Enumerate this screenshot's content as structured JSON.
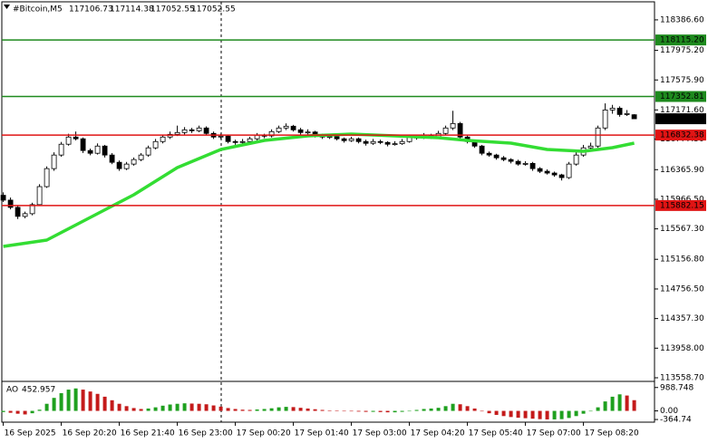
{
  "chart_data": {
    "type": "candlestick",
    "title": "#Bitcoin,M5",
    "candles": [
      [
        116020,
        116060,
        115930,
        115955
      ],
      [
        115955,
        115990,
        115830,
        115857
      ],
      [
        115857,
        115880,
        115700,
        115736
      ],
      [
        115736,
        115800,
        115710,
        115772
      ],
      [
        115772,
        115920,
        115750,
        115894
      ],
      [
        115894,
        116170,
        115880,
        116137
      ],
      [
        116137,
        116410,
        116120,
        116380
      ],
      [
        116380,
        116600,
        116350,
        116563
      ],
      [
        116563,
        116740,
        116540,
        116709
      ],
      [
        116709,
        116850,
        116690,
        116806
      ],
      [
        116806,
        116880,
        116760,
        116782
      ],
      [
        116782,
        116800,
        116590,
        116624
      ],
      [
        116624,
        116650,
        116560,
        116587
      ],
      [
        116587,
        116720,
        116570,
        116684
      ],
      [
        116684,
        116700,
        116530,
        116563
      ],
      [
        116563,
        116590,
        116440,
        116465
      ],
      [
        116465,
        116490,
        116350,
        116380
      ],
      [
        116380,
        116470,
        116360,
        116441
      ],
      [
        116441,
        116530,
        116420,
        116502
      ],
      [
        116502,
        116590,
        116480,
        116563
      ],
      [
        116563,
        116690,
        116540,
        116660
      ],
      [
        116660,
        116780,
        116640,
        116745
      ],
      [
        116745,
        116840,
        116720,
        116806
      ],
      [
        116806,
        116880,
        116780,
        116842
      ],
      [
        116842,
        116960,
        116820,
        116867
      ],
      [
        116867,
        116940,
        116840,
        116903
      ],
      [
        116903,
        116930,
        116860,
        116891
      ],
      [
        116891,
        116960,
        116870,
        116928
      ],
      [
        116928,
        116950,
        116830,
        116855
      ],
      [
        116855,
        116880,
        116780,
        116806
      ],
      [
        116806,
        116850,
        116780,
        116818
      ],
      [
        116818,
        116840,
        116720,
        116745
      ],
      [
        116745,
        116770,
        116700,
        116733
      ],
      [
        116733,
        116780,
        116710,
        116745
      ],
      [
        116745,
        116810,
        116720,
        116782
      ],
      [
        116782,
        116860,
        116760,
        116830
      ],
      [
        116830,
        116850,
        116790,
        116822
      ],
      [
        116822,
        116910,
        116800,
        116879
      ],
      [
        116879,
        116960,
        116860,
        116928
      ],
      [
        116928,
        116990,
        116900,
        116952
      ],
      [
        116952,
        116970,
        116880,
        116903
      ],
      [
        116903,
        116930,
        116840,
        116867
      ],
      [
        116867,
        116910,
        116840,
        116874
      ],
      [
        116874,
        116890,
        116800,
        116830
      ],
      [
        116830,
        116850,
        116780,
        116806
      ],
      [
        116806,
        116840,
        116780,
        116812
      ],
      [
        116812,
        116830,
        116760,
        116782
      ],
      [
        116782,
        116800,
        116730,
        116757
      ],
      [
        116757,
        116810,
        116740,
        116782
      ],
      [
        116782,
        116800,
        116720,
        116745
      ],
      [
        116745,
        116770,
        116690,
        116721
      ],
      [
        116721,
        116780,
        116700,
        116745
      ],
      [
        116745,
        116770,
        116710,
        116733
      ],
      [
        116733,
        116750,
        116680,
        116709
      ],
      [
        116709,
        116750,
        116690,
        116716
      ],
      [
        116716,
        116780,
        116700,
        116745
      ],
      [
        116745,
        116840,
        116730,
        116806
      ],
      [
        116806,
        116830,
        116770,
        116800
      ],
      [
        116800,
        116860,
        116780,
        116830
      ],
      [
        116830,
        116850,
        116780,
        116806
      ],
      [
        116806,
        116890,
        116790,
        116855
      ],
      [
        116855,
        116960,
        116840,
        116928
      ],
      [
        116928,
        117160,
        116900,
        116988
      ],
      [
        116988,
        117010,
        116780,
        116806
      ],
      [
        116806,
        116830,
        116720,
        116745
      ],
      [
        116745,
        116770,
        116660,
        116684
      ],
      [
        116684,
        116700,
        116560,
        116587
      ],
      [
        116587,
        116610,
        116540,
        116563
      ],
      [
        116563,
        116580,
        116500,
        116526
      ],
      [
        116526,
        116550,
        116480,
        116502
      ],
      [
        116502,
        116520,
        116450,
        116478
      ],
      [
        116478,
        116500,
        116420,
        116441
      ],
      [
        116441,
        116480,
        116420,
        116450
      ],
      [
        116450,
        116470,
        116350,
        116380
      ],
      [
        116380,
        116400,
        116320,
        116344
      ],
      [
        116344,
        116370,
        116300,
        116320
      ],
      [
        116320,
        116340,
        116270,
        116295
      ],
      [
        116295,
        116310,
        116220,
        116259
      ],
      [
        116259,
        116470,
        116240,
        116441
      ],
      [
        116441,
        116600,
        116420,
        116563
      ],
      [
        116563,
        116700,
        116540,
        116660
      ],
      [
        116660,
        116730,
        116630,
        116684
      ],
      [
        116684,
        116960,
        116660,
        116928
      ],
      [
        116928,
        117260,
        116900,
        117171
      ],
      [
        117171,
        117240,
        117120,
        117195
      ],
      [
        117195,
        117220,
        117080,
        117110
      ],
      [
        117110,
        117170,
        117090,
        117122
      ],
      [
        117106.73,
        117114.38,
        117052.55,
        117052.55
      ]
    ],
    "candle_up_color": "#ffffff",
    "candle_down_color": "#000000",
    "candle_edge_color": "#000000",
    "ma": {
      "color": "#33dd33",
      "x": [
        0,
        6,
        12,
        18,
        24,
        30,
        36,
        42,
        48,
        54,
        60,
        64,
        70,
        75,
        80,
        84,
        87
      ],
      "values": [
        115331,
        115416,
        115722,
        116027,
        116394,
        116638,
        116760,
        116821,
        116846,
        116821,
        116797,
        116760,
        116724,
        116638,
        116614,
        116663,
        116724
      ]
    },
    "levels": [
      {
        "value": 118115.2,
        "label": "118115.20",
        "color": "#1e8a1e"
      },
      {
        "value": 117352.81,
        "label": "117352.81",
        "color": "#1e8a1e"
      },
      {
        "value": 116832.38,
        "label": "116832.38",
        "color": "#e01414"
      },
      {
        "value": 115882.15,
        "label": "115882.15",
        "color": "#e01414"
      }
    ],
    "xlim": [
      -0.2,
      89.8
    ],
    "ylim": [
      113522,
      118630
    ],
    "xticks": [
      {
        "value": 0,
        "label": "16 Sep 2025"
      },
      {
        "value": 8,
        "label": "16 Sep 20:20"
      },
      {
        "value": 16,
        "label": "16 Sep 21:40"
      },
      {
        "value": 24,
        "label": "16 Sep 23:00"
      },
      {
        "value": 32,
        "label": "17 Sep 00:20"
      },
      {
        "value": 40,
        "label": "17 Sep 01:40"
      },
      {
        "value": 48,
        "label": "17 Sep 03:00"
      },
      {
        "value": 56,
        "label": "17 Sep 04:20"
      },
      {
        "value": 64,
        "label": "17 Sep 05:40"
      },
      {
        "value": 72,
        "label": "17 Sep 07:00"
      },
      {
        "value": 80,
        "label": "17 Sep 08:20"
      }
    ],
    "yticks": [
      {
        "value": 118386.6,
        "label": "118386.60"
      },
      {
        "value": 117975.2,
        "label": "117975.20"
      },
      {
        "value": 117575.9,
        "label": "117575.90"
      },
      {
        "value": 117171.6,
        "label": "117171.60"
      },
      {
        "value": 116777.5,
        "label": "116777.50"
      },
      {
        "value": 116365.9,
        "label": "116365.90"
      },
      {
        "value": 115966.5,
        "label": "115966.50"
      },
      {
        "value": 115567.3,
        "label": "115567.30"
      },
      {
        "value": 115156.8,
        "label": "115156.80"
      },
      {
        "value": 114756.5,
        "label": "114756.50"
      },
      {
        "value": 114357.3,
        "label": "114357.30"
      },
      {
        "value": 113958,
        "label": "113958.00"
      },
      {
        "value": 113558.7,
        "label": "113558.70"
      }
    ],
    "indicator": {
      "title": "AO",
      "up_color": "#1fa01f",
      "down_color": "#c41a1a",
      "values": [
        -50,
        -80,
        -120,
        -150,
        -100,
        50,
        300,
        550,
        750,
        900,
        950,
        900,
        820,
        720,
        600,
        450,
        300,
        200,
        120,
        80,
        100,
        150,
        220,
        270,
        300,
        320,
        310,
        300,
        280,
        230,
        180,
        120,
        80,
        50,
        40,
        60,
        80,
        110,
        150,
        170,
        160,
        130,
        100,
        70,
        40,
        20,
        10,
        -10,
        -20,
        -30,
        -40,
        -40,
        -50,
        -60,
        -60,
        -40,
        0,
        40,
        80,
        100,
        130,
        200,
        300,
        280,
        200,
        100,
        -20,
        -100,
        -170,
        -220,
        -260,
        -290,
        -310,
        -330,
        -350,
        -360,
        -360,
        -350,
        -300,
        -220,
        -120,
        -20,
        150,
        400,
        600,
        700,
        650,
        452.957
      ],
      "ylim": [
        -439,
        1171
      ],
      "yticks": [
        988.748,
        {
          "value": 0,
          "label": "0.00"
        },
        -364.74
      ]
    }
  }
}
